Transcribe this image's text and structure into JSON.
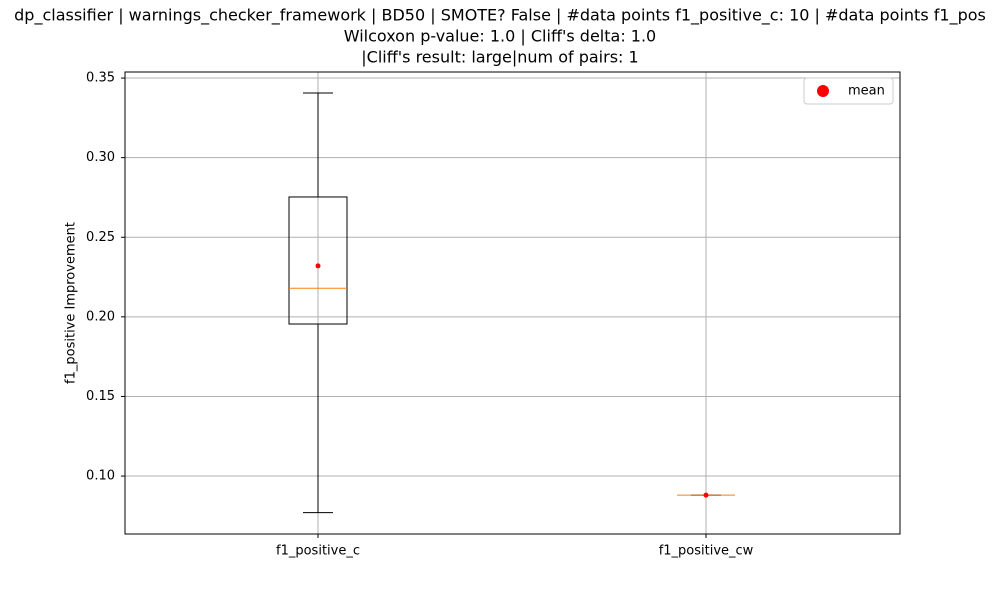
{
  "chart_data": {
    "type": "box",
    "title": [
      "dp_classifier | warnings_checker_framework | BD50 | SMOTE? False | #data points f1_positive_c: 10 | #data points f1_pos",
      "Wilcoxon p-value: 1.0 | Cliff's delta: 1.0",
      "|Cliff's result: large|num of pairs: 1"
    ],
    "ylabel": "f1_positive Improvement",
    "categories": [
      "f1_positive_c",
      "f1_positive_cw"
    ],
    "whisker_low": [
      0.077,
      0.088
    ],
    "q1": [
      0.1955,
      0.088
    ],
    "median": [
      0.218,
      0.088
    ],
    "q3": [
      0.2753,
      0.088
    ],
    "whisker_high": [
      0.3406,
      0.088
    ],
    "median_color": "#ff7f0e",
    "box_color": "#000000",
    "mean": {
      "name": "mean",
      "color": "#ff0000",
      "values": [
        0.232,
        0.088
      ]
    },
    "ylim": [
      0.0636,
      0.3538
    ],
    "yticks": [
      {
        "value": 0.1,
        "label": "0.10"
      },
      {
        "value": 0.15,
        "label": "0.15"
      },
      {
        "value": 0.2,
        "label": "0.20"
      },
      {
        "value": 0.25,
        "label": "0.25"
      },
      {
        "value": 0.3,
        "label": "0.30"
      },
      {
        "value": 0.35,
        "label": "0.35"
      }
    ],
    "grid": true,
    "legend_loc": "upper right"
  }
}
